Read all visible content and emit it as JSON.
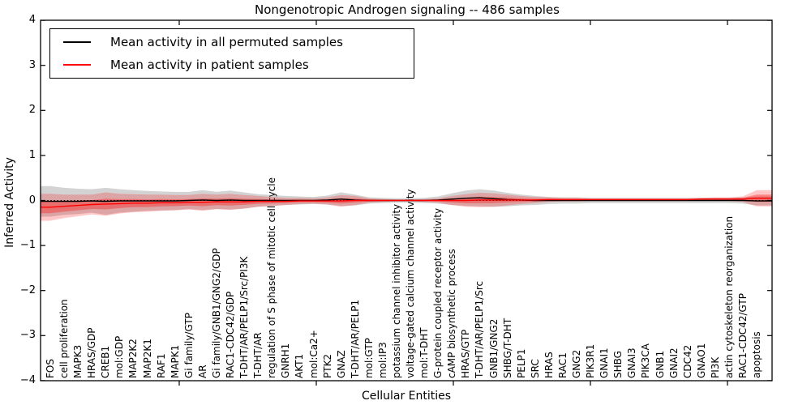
{
  "title": "Nongenotropic Androgen signaling -- 486 samples",
  "axes": {
    "ylabel": "Inferred Activity",
    "xlabel": "Cellular Entities",
    "yticks": [
      "4",
      "3",
      "2",
      "1",
      "0",
      "−1",
      "−2",
      "−3",
      "−4"
    ],
    "ylim": [
      -4,
      4
    ]
  },
  "legend": {
    "entries": [
      {
        "label": "Mean activity in all permuted samples",
        "color": "#000000"
      },
      {
        "label": "Mean activity in patient samples",
        "color": "#ff0000"
      }
    ]
  },
  "colors": {
    "patient_line": "#ff0000",
    "permuted_line": "#000000",
    "patient_band": "rgba(255,0,0,0.22)",
    "patient_band_inner": "rgba(255,0,0,0.32)",
    "permuted_band": "rgba(110,110,110,0.30)",
    "frame": "#000000",
    "background": "#ffffff"
  },
  "chart_data": {
    "type": "line",
    "title": "Nongenotropic Androgen signaling -- 486 samples",
    "xlabel": "Cellular Entities",
    "ylabel": "Inferred Activity",
    "ylim": [
      -4,
      4
    ],
    "grid": false,
    "legend_position": "upper left",
    "zero_reference_line": "dotted",
    "categories": [
      "FOS",
      "cell proliferation",
      "MAPK3",
      "HRAS/GDP",
      "CREB1",
      "mol:GDP",
      "MAP2K2",
      "MAP2K1",
      "RAF1",
      "MAPK1",
      "Gi family/GTP",
      "AR",
      "Gi family/GNB1/GNG2/GDP",
      "RAC1-CDC42/GDP",
      "T-DHT/AR/PELP1/Src/PI3K",
      "T-DHT/AR",
      "regulation of S phase of mitotic cell cycle",
      "GNRH1",
      "AKT1",
      "mol:Ca2+",
      "PTK2",
      "GNAZ",
      "T-DHT/AR/PELP1",
      "mol:GTP",
      "mol:IP3",
      "potassium channel inhibitor activity",
      "voltage-gated calcium channel activity",
      "mol:T-DHT",
      "G-protein coupled receptor activity",
      "cAMP biosynthetic process",
      "HRAS/GTP",
      "T-DHT/AR/PELP1/Src",
      "GNB1/GNG2",
      "SHBG/T-DHT",
      "PELP1",
      "SRC",
      "HRAS",
      "RAC1",
      "GNG2",
      "PIK3R1",
      "GNAI1",
      "SHBG",
      "GNAI3",
      "PIK3CA",
      "GNB1",
      "GNAI2",
      "CDC42",
      "GNAO1",
      "PI3K",
      "actin cytoskeleton reorganization",
      "RAC1-CDC42/GTP",
      "apoptosis"
    ],
    "series": [
      {
        "name": "Mean activity in all permuted samples",
        "color": "#000000",
        "values": [
          -0.02,
          -0.02,
          -0.02,
          -0.01,
          -0.02,
          -0.01,
          -0.01,
          -0.01,
          -0.01,
          -0.01,
          0,
          0.01,
          0,
          0.01,
          0,
          0,
          0,
          0,
          0,
          0,
          0.01,
          0.03,
          0.01,
          0,
          0,
          0,
          0,
          0,
          0.01,
          0.03,
          0.05,
          0.06,
          0.04,
          0.02,
          0.01,
          0,
          0,
          0,
          0,
          0,
          0,
          0,
          0,
          0,
          0,
          0,
          0,
          0,
          0,
          0,
          0,
          -0.01
        ],
        "std": [
          0.34,
          0.3,
          0.28,
          0.26,
          0.3,
          0.26,
          0.24,
          0.22,
          0.21,
          0.2,
          0.19,
          0.22,
          0.19,
          0.21,
          0.18,
          0.14,
          0.12,
          0.1,
          0.09,
          0.08,
          0.1,
          0.15,
          0.12,
          0.07,
          0.06,
          0.05,
          0.05,
          0.06,
          0.08,
          0.13,
          0.17,
          0.19,
          0.18,
          0.15,
          0.12,
          0.1,
          0.08,
          0.07,
          0.07,
          0.06,
          0.06,
          0.06,
          0.06,
          0.06,
          0.06,
          0.06,
          0.06,
          0.06,
          0.06,
          0.06,
          0.07,
          0.1
        ]
      },
      {
        "name": "Mean activity in patient samples",
        "color": "#ff0000",
        "values": [
          -0.15,
          -0.13,
          -0.11,
          -0.09,
          -0.08,
          -0.07,
          -0.06,
          -0.06,
          -0.05,
          -0.05,
          -0.04,
          -0.04,
          -0.03,
          -0.03,
          -0.03,
          -0.02,
          -0.02,
          -0.02,
          -0.01,
          -0.01,
          -0.01,
          -0.01,
          0,
          0,
          0,
          0,
          0,
          0,
          0,
          0,
          0,
          0.01,
          0.01,
          0.01,
          0.01,
          0.01,
          0.02,
          0.02,
          0.02,
          0.02,
          0.02,
          0.02,
          0.02,
          0.02,
          0.02,
          0.02,
          0.02,
          0.03,
          0.03,
          0.03,
          0.03,
          0.05
        ],
        "std": [
          0.3,
          0.26,
          0.24,
          0.22,
          0.26,
          0.22,
          0.2,
          0.19,
          0.18,
          0.17,
          0.16,
          0.19,
          0.16,
          0.18,
          0.15,
          0.12,
          0.1,
          0.08,
          0.07,
          0.06,
          0.08,
          0.13,
          0.1,
          0.05,
          0.03,
          0.02,
          0.02,
          0.03,
          0.05,
          0.1,
          0.14,
          0.16,
          0.15,
          0.12,
          0.09,
          0.07,
          0.05,
          0.04,
          0.04,
          0.03,
          0.03,
          0.03,
          0.03,
          0.03,
          0.03,
          0.03,
          0.03,
          0.03,
          0.04,
          0.04,
          0.06,
          0.18
        ]
      }
    ]
  }
}
